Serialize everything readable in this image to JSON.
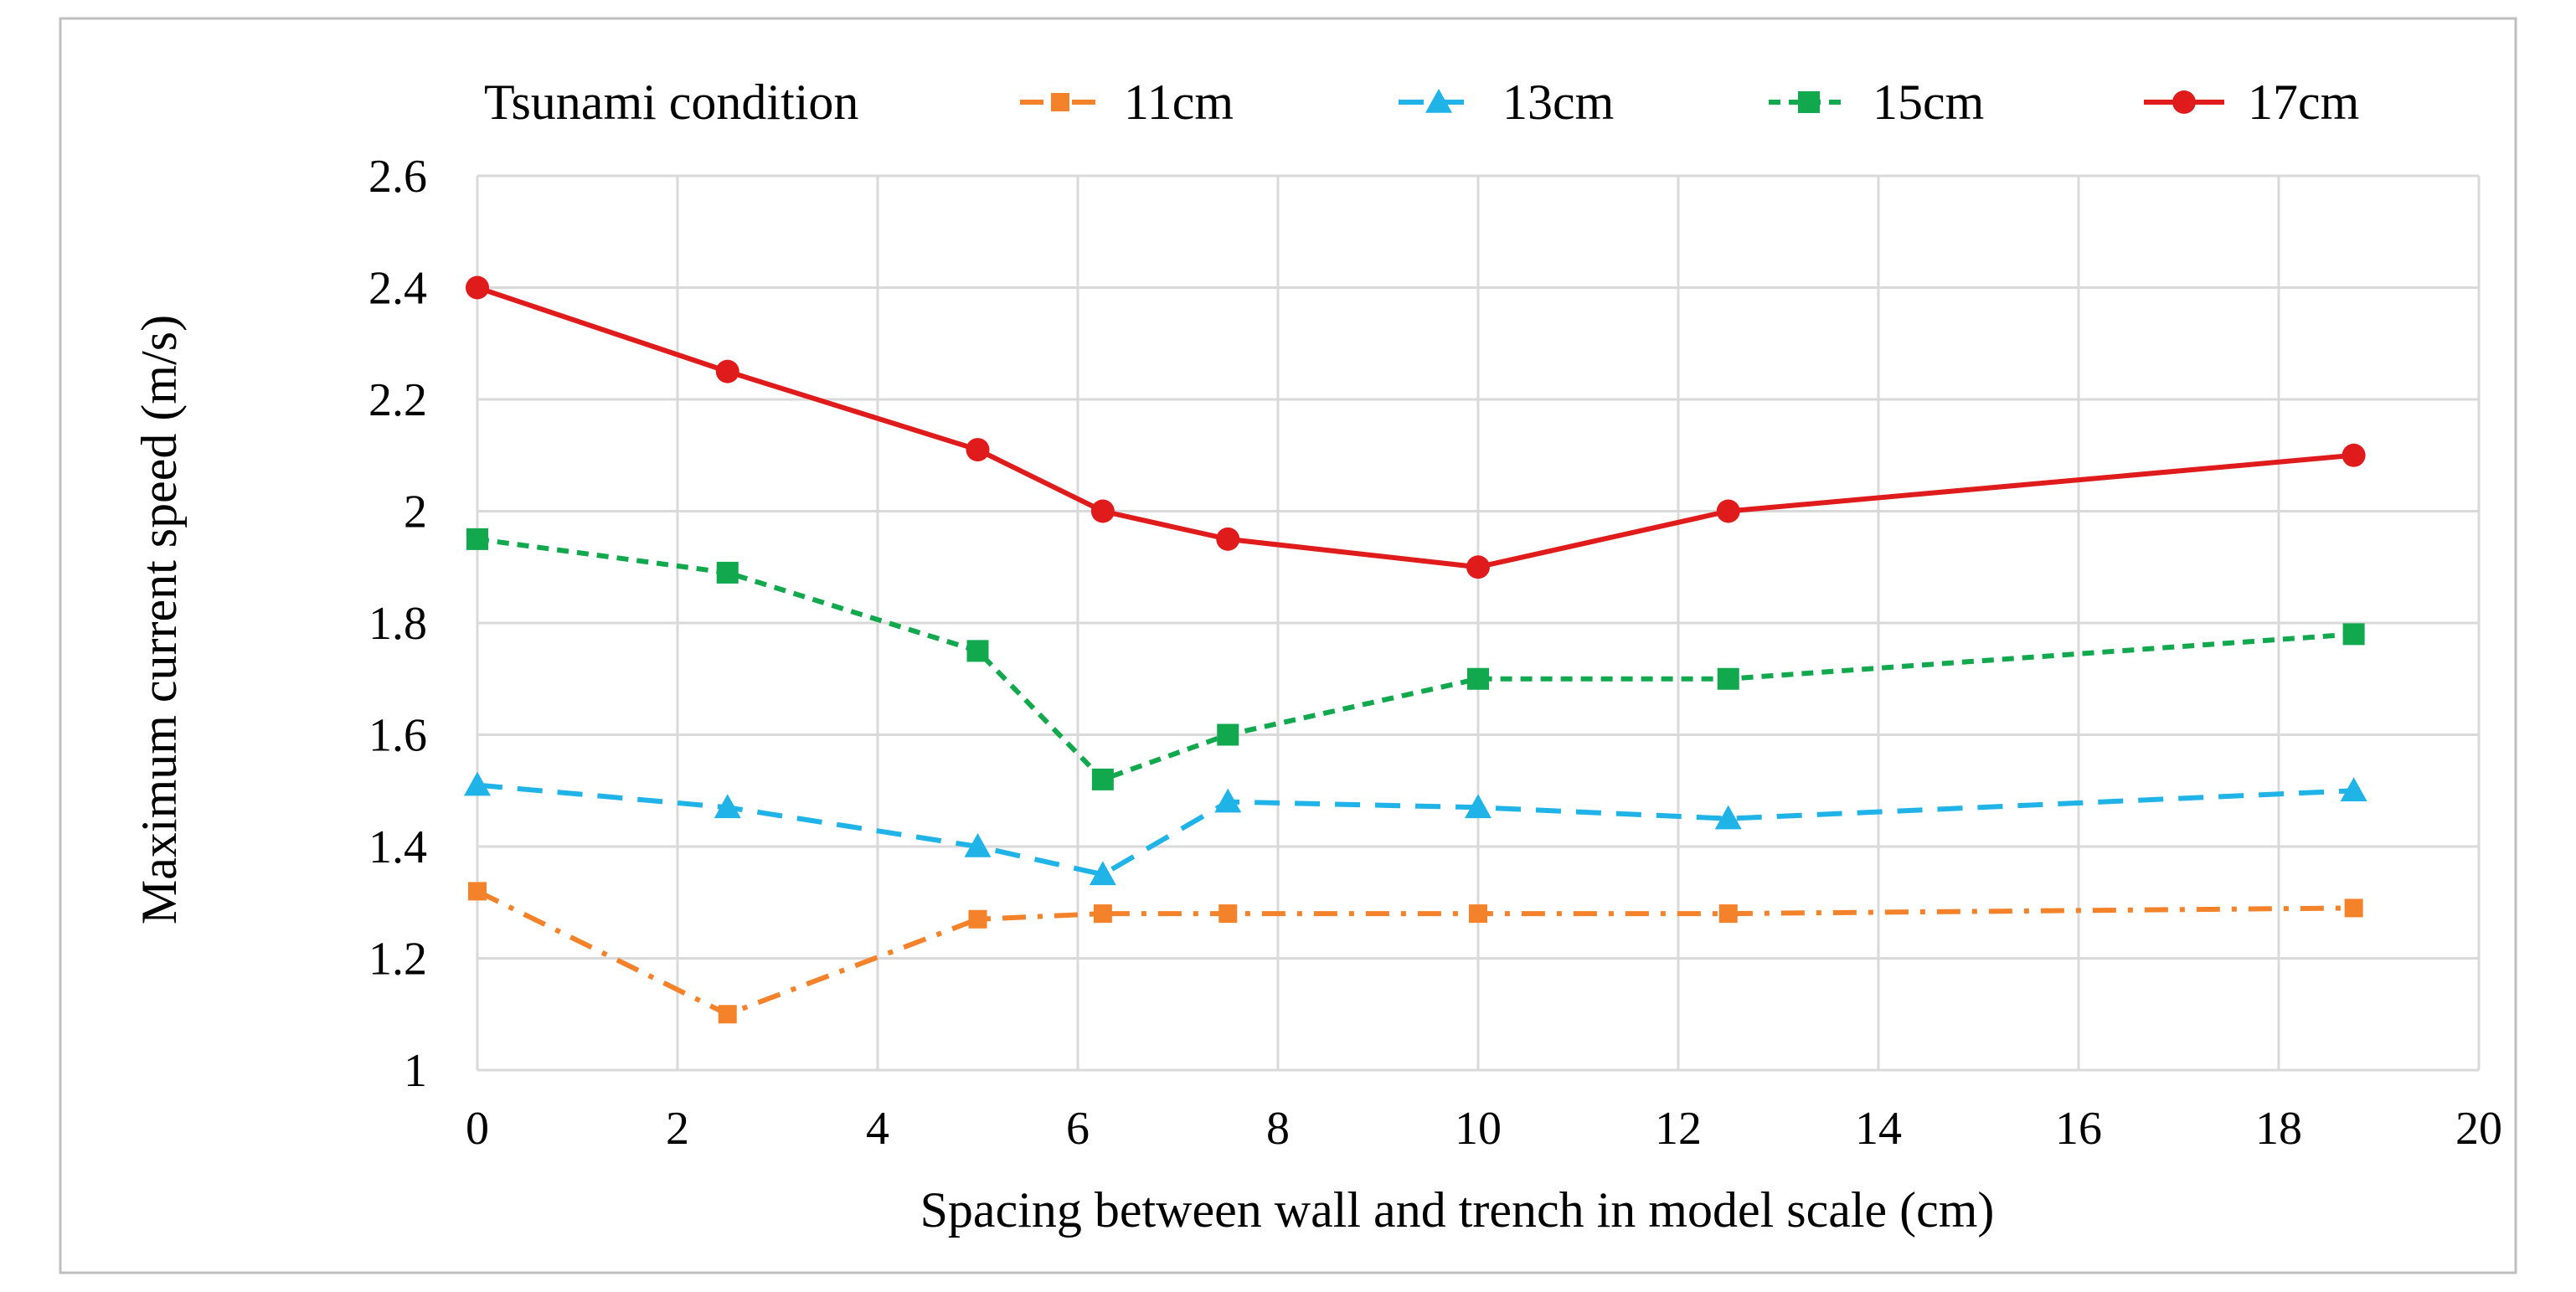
{
  "chart_data": {
    "type": "line",
    "title": "",
    "xlabel": "Spacing between wall and trench  in model scale (cm)",
    "ylabel": "Maximum current speed (m/s)",
    "xlim": [
      0,
      20
    ],
    "ylim": [
      1,
      2.6
    ],
    "x_ticks": [
      0,
      2,
      4,
      6,
      8,
      10,
      12,
      14,
      16,
      18,
      20
    ],
    "y_ticks": [
      "1",
      "1.2",
      "1.4",
      "1.6",
      "1.8",
      "2",
      "2.2",
      "2.4",
      "2.6"
    ],
    "x_tick_labels": [
      "0",
      "2",
      "4",
      "6",
      "8",
      "10",
      "12",
      "14",
      "16",
      "18",
      "20"
    ],
    "grid": true,
    "legend": {
      "title": "Tsunami condition",
      "position": "top"
    },
    "x": [
      0,
      2.5,
      5,
      6.25,
      7.5,
      10,
      12.5,
      18.75
    ],
    "series": [
      {
        "name": "11cm",
        "color": "#F4822A",
        "dash": "dash-dot",
        "marker": "square-small",
        "values": [
          1.32,
          1.1,
          1.27,
          1.28,
          1.28,
          1.28,
          1.28,
          1.29
        ]
      },
      {
        "name": "13cm",
        "color": "#1FB3E8",
        "dash": "dash",
        "marker": "triangle",
        "values": [
          1.51,
          1.47,
          1.4,
          1.35,
          1.48,
          1.47,
          1.45,
          1.5
        ]
      },
      {
        "name": "15cm",
        "color": "#12A84D",
        "dash": "short-dash",
        "marker": "square",
        "values": [
          1.95,
          1.89,
          1.75,
          1.52,
          1.6,
          1.7,
          1.7,
          1.78
        ]
      },
      {
        "name": "17cm",
        "color": "#E01B1B",
        "dash": "solid",
        "marker": "circle",
        "values": [
          2.4,
          2.25,
          2.11,
          2.0,
          1.95,
          1.9,
          2.0,
          2.1
        ]
      }
    ]
  }
}
